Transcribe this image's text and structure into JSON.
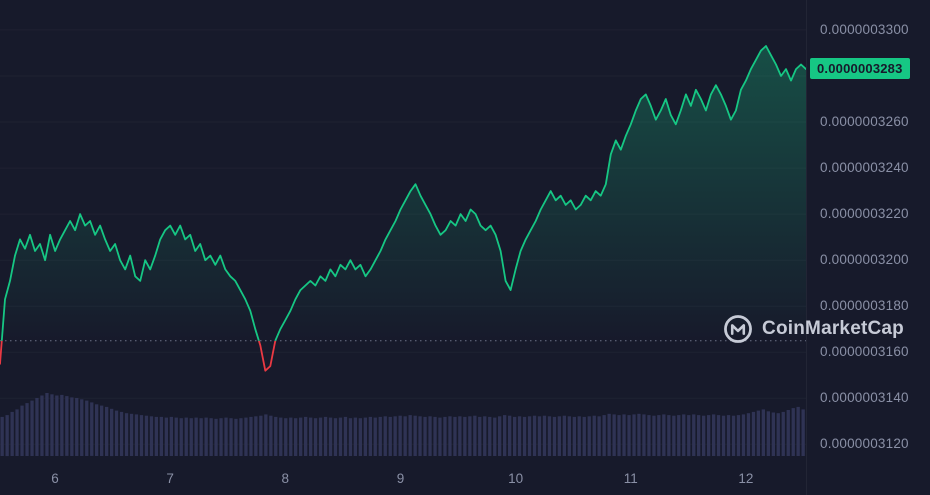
{
  "watermark": {
    "brand": "CoinMarketCap",
    "icon": "coinmarketcap-logo"
  },
  "colors": {
    "background": "#171A2B",
    "up": "#16C784",
    "down": "#EA3943",
    "axis_text": "#8A90A6",
    "volume_bar": "#2F3354",
    "baseline_dotted": "#777D91",
    "badge_text": "#171A2B",
    "watermark": "#C6CAD6",
    "gridline": "rgba(255,255,255,0.035)"
  },
  "chart_data": {
    "type": "line",
    "title": "",
    "x_axis": {
      "label": "",
      "range": [
        5.522,
        12.522
      ],
      "ticks": [
        {
          "label": "6",
          "value": 6
        },
        {
          "label": "7",
          "value": 7
        },
        {
          "label": "8",
          "value": 8
        },
        {
          "label": "9",
          "value": 9
        },
        {
          "label": "10",
          "value": 10
        },
        {
          "label": "11",
          "value": 11
        },
        {
          "label": "12",
          "value": 12
        }
      ]
    },
    "y_axis": {
      "label": "",
      "scale": 1e-10,
      "range": [
        3098,
        3313
      ],
      "grid_step": 20,
      "ticks": [
        {
          "label": "0.0000003300",
          "value": 3300
        },
        {
          "label": "0.0000003260",
          "value": 3260
        },
        {
          "label": "0.0000003240",
          "value": 3240
        },
        {
          "label": "0.0000003220",
          "value": 3220
        },
        {
          "label": "0.0000003200",
          "value": 3200
        },
        {
          "label": "0.0000003180",
          "value": 3180
        },
        {
          "label": "0.0000003160",
          "value": 3160
        },
        {
          "label": "0.0000003140",
          "value": 3140
        },
        {
          "label": "0.0000003120",
          "value": 3120
        }
      ]
    },
    "baseline": {
      "value": 3165,
      "style": "dotted"
    },
    "last_price": {
      "value": 3283,
      "label": "0.0000003283"
    },
    "series": [
      {
        "name": "price",
        "unit_scale": 1e-10,
        "values": [
          3155,
          3183,
          3191,
          3202,
          3209,
          3205,
          3211,
          3204,
          3207,
          3200,
          3211,
          3204,
          3209,
          3213,
          3217,
          3213,
          3220,
          3215,
          3217,
          3211,
          3215,
          3209,
          3204,
          3207,
          3200,
          3196,
          3202,
          3193,
          3191,
          3200,
          3196,
          3202,
          3209,
          3213,
          3215,
          3211,
          3215,
          3209,
          3211,
          3204,
          3207,
          3200,
          3202,
          3198,
          3202,
          3196,
          3193,
          3191,
          3187,
          3183,
          3178,
          3170,
          3163,
          3152,
          3154,
          3165,
          3170,
          3174,
          3178,
          3183,
          3187,
          3189,
          3191,
          3189,
          3193,
          3191,
          3196,
          3193,
          3198,
          3196,
          3200,
          3196,
          3198,
          3193,
          3196,
          3200,
          3204,
          3209,
          3213,
          3217,
          3222,
          3226,
          3230,
          3233,
          3228,
          3224,
          3220,
          3215,
          3211,
          3213,
          3217,
          3215,
          3220,
          3217,
          3222,
          3220,
          3215,
          3213,
          3215,
          3211,
          3204,
          3191,
          3187,
          3196,
          3204,
          3209,
          3213,
          3217,
          3222,
          3226,
          3230,
          3226,
          3228,
          3224,
          3226,
          3222,
          3224,
          3228,
          3226,
          3230,
          3228,
          3233,
          3246,
          3252,
          3248,
          3254,
          3259,
          3265,
          3270,
          3272,
          3267,
          3261,
          3265,
          3270,
          3263,
          3259,
          3265,
          3272,
          3267,
          3274,
          3270,
          3265,
          3272,
          3276,
          3272,
          3267,
          3261,
          3265,
          3274,
          3278,
          3283,
          3287,
          3291,
          3293,
          3289,
          3285,
          3280,
          3283,
          3278,
          3283,
          3285,
          3283
        ]
      }
    ],
    "volume": {
      "name": "volume",
      "values_relative": [
        0.62,
        0.65,
        0.7,
        0.74,
        0.8,
        0.84,
        0.88,
        0.92,
        0.96,
        1.0,
        0.98,
        0.96,
        0.97,
        0.95,
        0.93,
        0.92,
        0.9,
        0.88,
        0.85,
        0.82,
        0.8,
        0.78,
        0.75,
        0.72,
        0.7,
        0.68,
        0.67,
        0.66,
        0.65,
        0.64,
        0.63,
        0.62,
        0.62,
        0.61,
        0.62,
        0.61,
        0.6,
        0.61,
        0.6,
        0.61,
        0.6,
        0.61,
        0.6,
        0.59,
        0.6,
        0.61,
        0.6,
        0.59,
        0.6,
        0.61,
        0.62,
        0.63,
        0.64,
        0.66,
        0.64,
        0.62,
        0.61,
        0.6,
        0.61,
        0.6,
        0.61,
        0.62,
        0.61,
        0.6,
        0.61,
        0.62,
        0.61,
        0.6,
        0.61,
        0.62,
        0.6,
        0.61,
        0.6,
        0.61,
        0.62,
        0.61,
        0.62,
        0.63,
        0.62,
        0.63,
        0.64,
        0.63,
        0.65,
        0.64,
        0.63,
        0.62,
        0.63,
        0.62,
        0.61,
        0.62,
        0.63,
        0.62,
        0.63,
        0.62,
        0.63,
        0.64,
        0.62,
        0.63,
        0.62,
        0.61,
        0.63,
        0.65,
        0.64,
        0.62,
        0.63,
        0.62,
        0.63,
        0.64,
        0.63,
        0.64,
        0.63,
        0.62,
        0.63,
        0.64,
        0.63,
        0.62,
        0.63,
        0.62,
        0.63,
        0.64,
        0.63,
        0.65,
        0.67,
        0.66,
        0.65,
        0.66,
        0.65,
        0.66,
        0.67,
        0.66,
        0.65,
        0.64,
        0.65,
        0.66,
        0.65,
        0.64,
        0.65,
        0.66,
        0.65,
        0.66,
        0.65,
        0.64,
        0.65,
        0.66,
        0.65,
        0.64,
        0.65,
        0.64,
        0.65,
        0.66,
        0.68,
        0.7,
        0.72,
        0.74,
        0.71,
        0.69,
        0.68,
        0.7,
        0.73,
        0.76,
        0.78,
        0.74
      ]
    }
  }
}
